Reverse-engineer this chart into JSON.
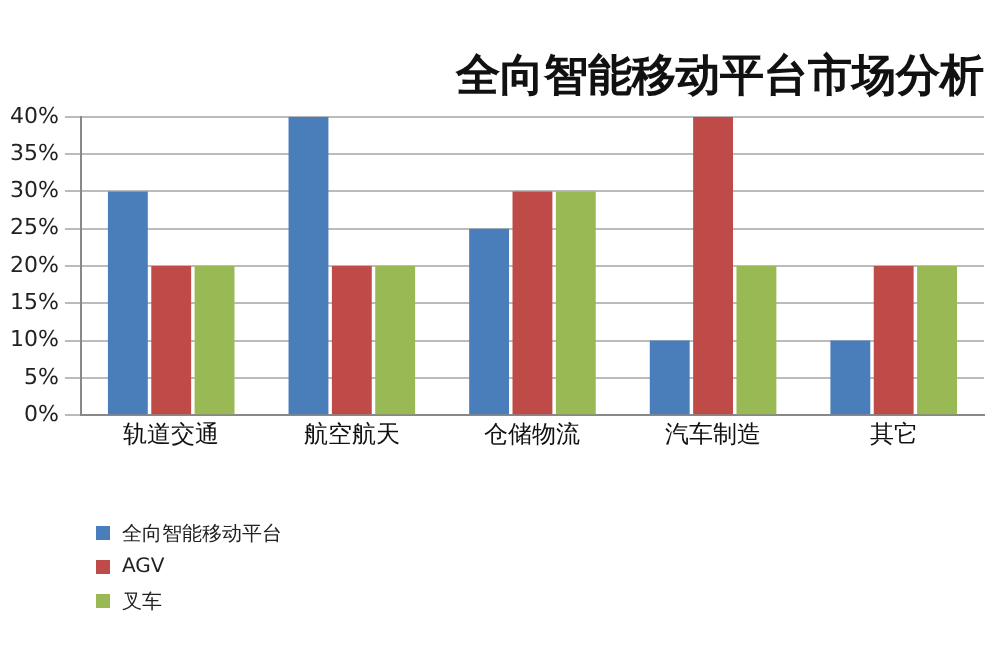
{
  "chart_data": {
    "type": "bar",
    "title": "全向智能移动平台市场分析",
    "categories": [
      "轨道交通",
      "航空航天",
      "仓储物流",
      "汽车制造",
      "其它"
    ],
    "series": [
      {
        "name": "全向智能移动平台",
        "color": "#4a7ebb",
        "values": [
          30,
          40,
          25,
          10,
          10
        ]
      },
      {
        "name": "AGV",
        "color": "#be4b48",
        "values": [
          20,
          20,
          30,
          40,
          20
        ]
      },
      {
        "name": "叉车",
        "color": "#98b954",
        "values": [
          20,
          20,
          30,
          20,
          20
        ]
      }
    ],
    "ylim": [
      0,
      40
    ],
    "yticks": [
      {
        "value": 0,
        "label": "0%"
      },
      {
        "value": 5,
        "label": "5%"
      },
      {
        "value": 10,
        "label": "10%"
      },
      {
        "value": 15,
        "label": "15%"
      },
      {
        "value": 20,
        "label": "20%"
      },
      {
        "value": 25,
        "label": "25%"
      },
      {
        "value": 30,
        "label": "30%"
      },
      {
        "value": 35,
        "label": "35%"
      },
      {
        "value": 40,
        "label": "40%"
      }
    ],
    "grid": "y",
    "legend": "bottom left"
  }
}
